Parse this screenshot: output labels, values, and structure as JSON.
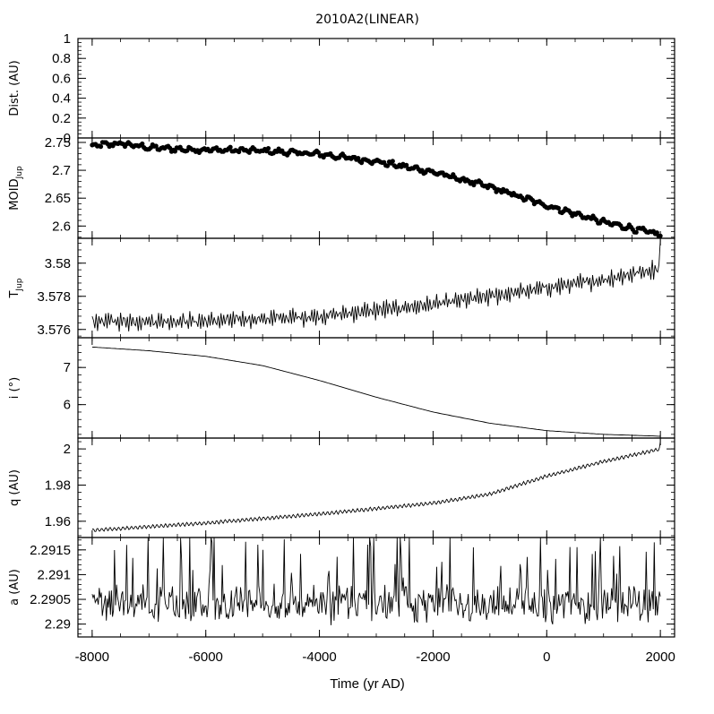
{
  "title": "2010A2(LINEAR)",
  "xlabel": "Time (yr AD)",
  "chart_data": {
    "type": "line",
    "title": "2010A2(LINEAR)",
    "xlabel": "Time (yr AD)",
    "xlim": [
      -8250,
      2250
    ],
    "xticks": [
      -8000,
      -6000,
      -4000,
      -2000,
      0,
      2000
    ],
    "grid": false,
    "panels": [
      {
        "id": "dist",
        "ylabel": "Dist. (AU)",
        "ylim": [
          0,
          1
        ],
        "yticks": [
          0,
          0.2,
          0.4,
          0.6,
          0.8,
          1
        ],
        "ytick_labels": [
          "0",
          "0.2",
          "0.4",
          "0.6",
          "0.8",
          "1"
        ],
        "style": "line",
        "series": []
      },
      {
        "id": "moid",
        "ylabel_main": "MOID",
        "ylabel_sub": "Jup",
        "ylim": [
          2.578,
          2.758
        ],
        "yticks": [
          2.6,
          2.65,
          2.7,
          2.75
        ],
        "ytick_labels": [
          "2.6",
          "2.65",
          "2.7",
          "2.75"
        ],
        "style": "points",
        "trend": {
          "x": [
            -8000,
            -7500,
            -7000,
            -6500,
            -6000,
            -5000,
            -4000,
            -3000,
            -2000,
            -1000,
            0,
            1000,
            1500,
            2000
          ],
          "y": [
            2.744,
            2.748,
            2.741,
            2.738,
            2.737,
            2.735,
            2.729,
            2.716,
            2.697,
            2.67,
            2.637,
            2.607,
            2.596,
            2.584
          ]
        },
        "noise": 0.0035,
        "wiggle": 0.0028,
        "wiggle_period": 220,
        "n": 330
      },
      {
        "id": "tjup",
        "ylabel_main": "T",
        "ylabel_sub": "Jup",
        "ylim": [
          3.5755,
          3.5815
        ],
        "yticks": [
          3.576,
          3.578,
          3.58
        ],
        "ytick_labels": [
          "3.576",
          "3.578",
          "3.58"
        ],
        "style": "line",
        "trend": {
          "x": [
            -8000,
            -6000,
            -4000,
            -2000,
            0,
            1000,
            2000
          ],
          "y": [
            3.5765,
            3.5765,
            3.5768,
            3.5775,
            3.5785,
            3.579,
            3.5797
          ]
        },
        "noise": 0.0002,
        "wiggle": 0.00045,
        "wiggle_period": 55,
        "n": 420,
        "end_spike": 3.5814
      },
      {
        "id": "incl",
        "ylabel": "i (°)",
        "ylim": [
          5.1,
          7.8
        ],
        "yticks": [
          6,
          7
        ],
        "ytick_labels": [
          "6",
          "7"
        ],
        "style": "line",
        "trend": {
          "x": [
            -8000,
            -7000,
            -6000,
            -5000,
            -4000,
            -3000,
            -2000,
            -1000,
            0,
            1000,
            2000
          ],
          "y": [
            7.55,
            7.45,
            7.3,
            7.05,
            6.65,
            6.2,
            5.8,
            5.5,
            5.3,
            5.2,
            5.15
          ]
        },
        "noise": 0,
        "wiggle": 0,
        "wiggle_period": 100,
        "n": 300
      },
      {
        "id": "q",
        "ylabel": "q (AU)",
        "ylim": [
          1.951,
          2.006
        ],
        "yticks": [
          1.96,
          1.98,
          2
        ],
        "ytick_labels": [
          "1.96",
          "1.98",
          "2"
        ],
        "style": "line",
        "trend": {
          "x": [
            -8000,
            -6000,
            -4000,
            -2000,
            -1000,
            0,
            1000,
            2000
          ],
          "y": [
            1.955,
            1.959,
            1.964,
            1.97,
            1.975,
            1.985,
            1.993,
            2.0
          ]
        },
        "noise": 0.0002,
        "wiggle": 0.0009,
        "wiggle_period": 75,
        "n": 620,
        "end_spike": 2.004
      },
      {
        "id": "a",
        "ylabel": "a (AU)",
        "ylim": [
          2.28974,
          2.29175
        ],
        "yticks": [
          2.29,
          2.2905,
          2.291,
          2.2915
        ],
        "ytick_labels": [
          "2.29",
          "2.2905",
          "2.291",
          "2.2915"
        ],
        "style": "line",
        "trend": {
          "x": [
            -8000,
            2000
          ],
          "y": [
            2.2904,
            2.2904
          ]
        },
        "noise": 0.00012,
        "wiggle": 0.0004,
        "wiggle_period": 80,
        "n": 560,
        "spiky": true
      }
    ]
  }
}
